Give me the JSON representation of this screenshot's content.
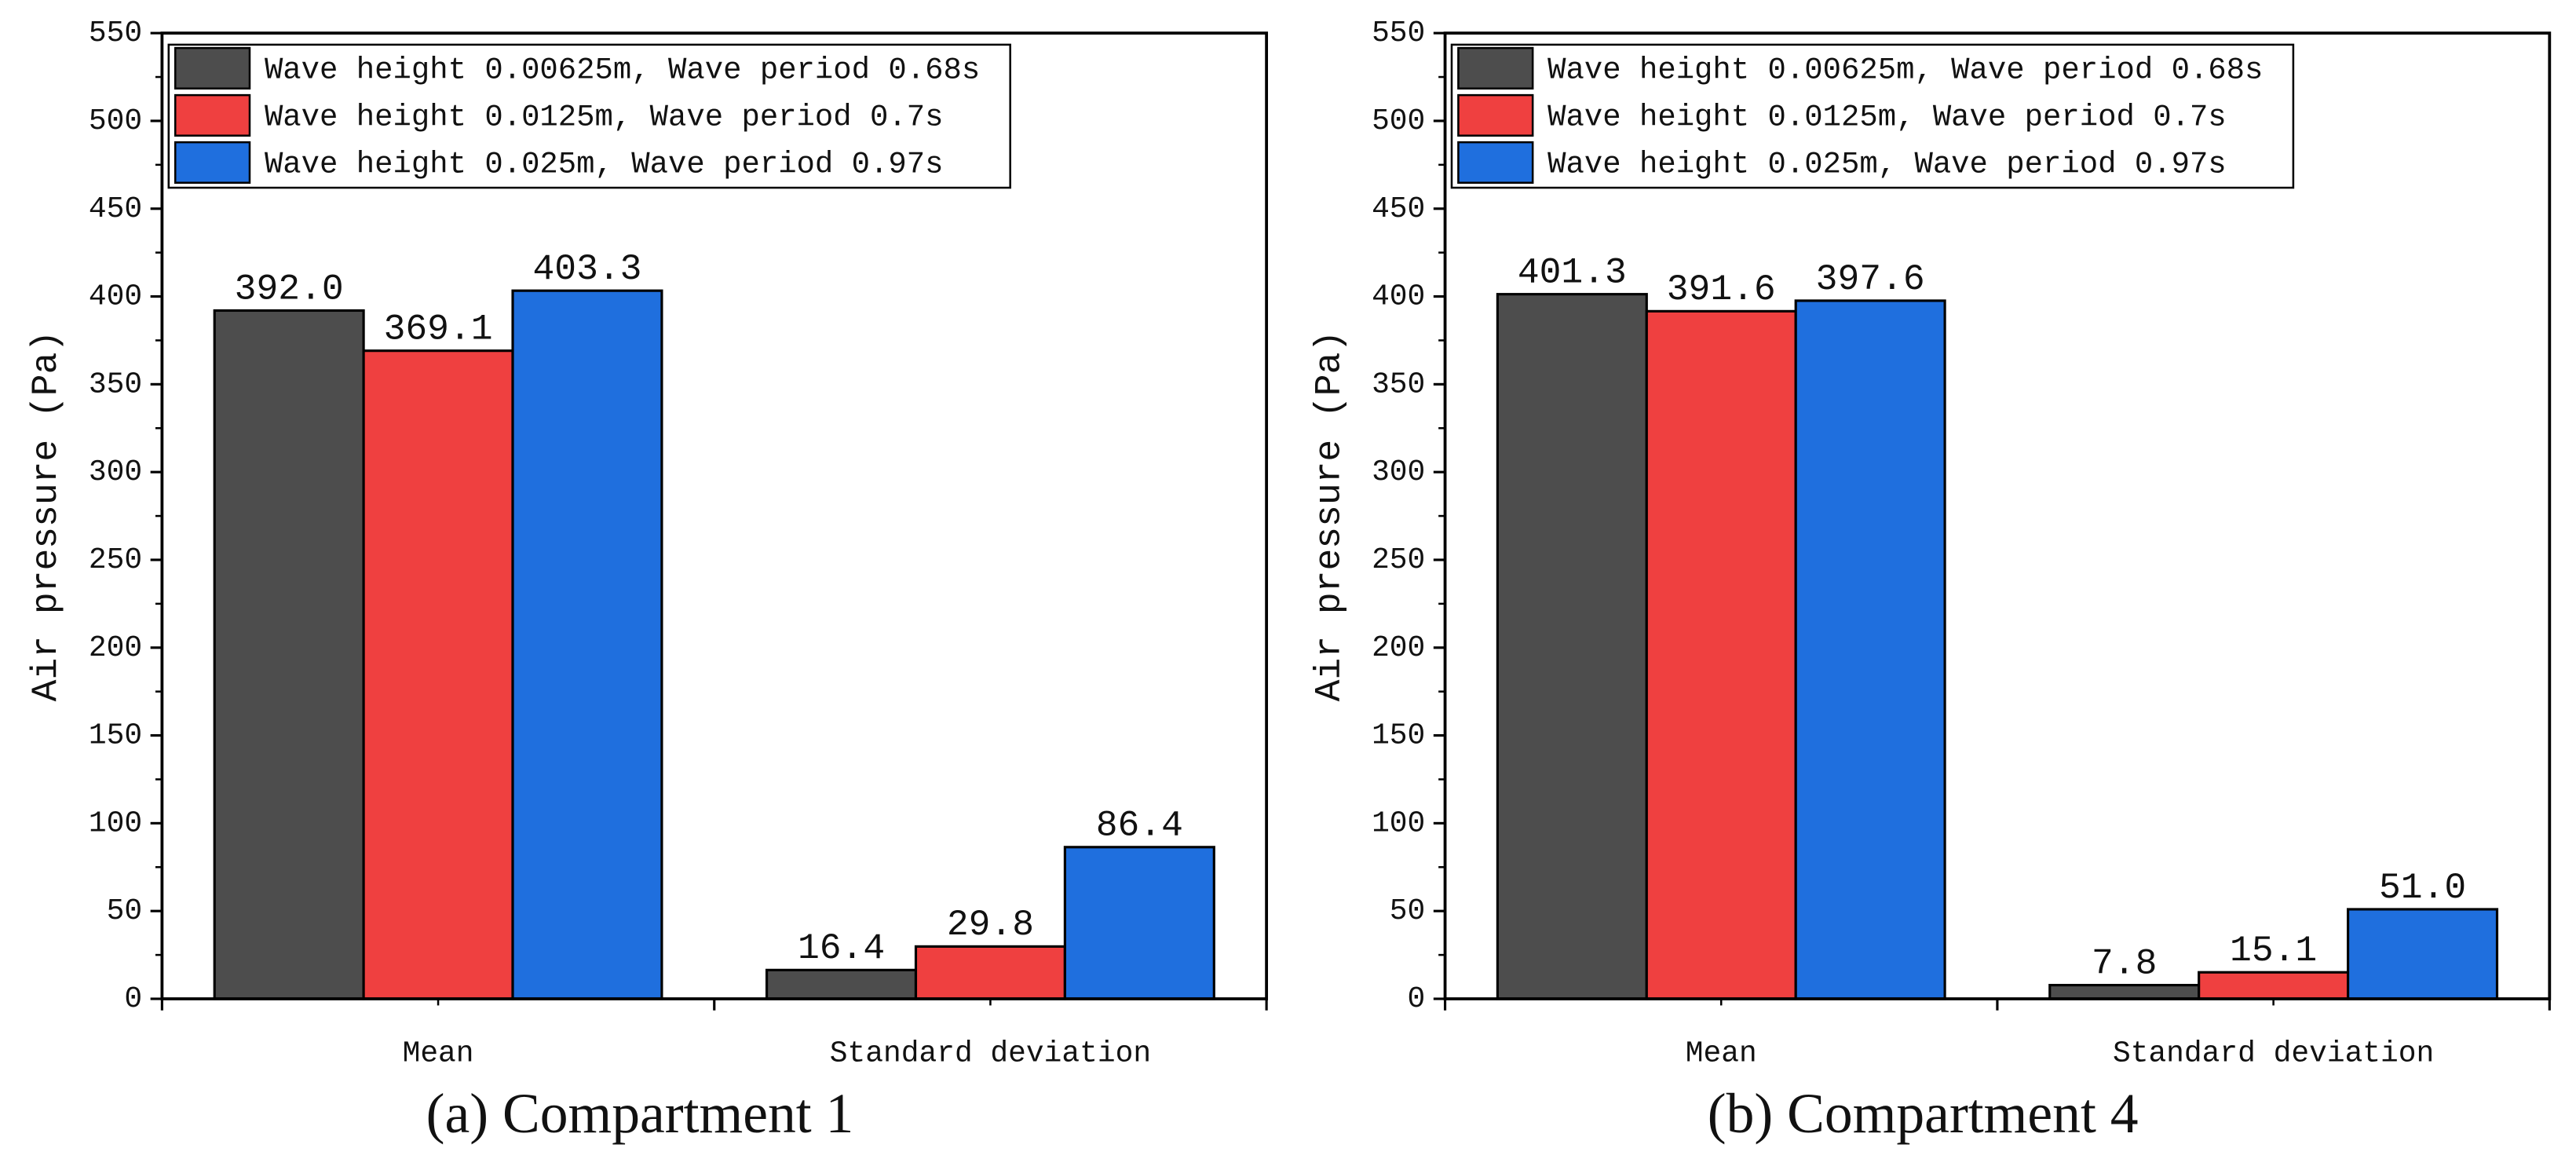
{
  "chart_data": [
    {
      "type": "bar",
      "caption": "(a) Compartment 1",
      "y_label": "Air pressure (Pa)",
      "categories": [
        "Mean",
        "Standard deviation"
      ],
      "series": [
        {
          "name": "Wave height 0.00625m, Wave period 0.68s",
          "color": "#4d4d4d",
          "values": [
            392.0,
            16.4
          ],
          "value_labels": [
            "392.0",
            "16.4"
          ]
        },
        {
          "name": "Wave height 0.0125m, Wave period 0.7s",
          "color": "#ef4040",
          "values": [
            369.1,
            29.8
          ],
          "value_labels": [
            "369.1",
            "29.8"
          ]
        },
        {
          "name": "Wave height 0.025m, Wave period 0.97s",
          "color": "#1f6fde",
          "values": [
            403.3,
            86.4
          ],
          "value_labels": [
            "403.3",
            "86.4"
          ]
        }
      ],
      "ylim": [
        0,
        550
      ],
      "yticks": [
        0,
        50,
        100,
        150,
        200,
        250,
        300,
        350,
        400,
        450,
        500,
        550
      ],
      "legend": "upper left"
    },
    {
      "type": "bar",
      "caption": "(b) Compartment 4",
      "y_label": "Air pressure (Pa)",
      "categories": [
        "Mean",
        "Standard deviation"
      ],
      "series": [
        {
          "name": "Wave height 0.00625m, Wave period 0.68s",
          "color": "#4d4d4d",
          "values": [
            401.3,
            7.8
          ],
          "value_labels": [
            "401.3",
            "7.8"
          ]
        },
        {
          "name": "Wave height 0.0125m, Wave period 0.7s",
          "color": "#ef4040",
          "values": [
            391.6,
            15.1
          ],
          "value_labels": [
            "391.6",
            "15.1"
          ]
        },
        {
          "name": "Wave height 0.025m, Wave period 0.97s",
          "color": "#1f6fde",
          "values": [
            397.6,
            51.0
          ],
          "value_labels": [
            "397.6",
            "51.0"
          ]
        }
      ],
      "ylim": [
        0,
        550
      ],
      "yticks": [
        0,
        50,
        100,
        150,
        200,
        250,
        300,
        350,
        400,
        450,
        500,
        550
      ],
      "legend": "upper left"
    }
  ]
}
